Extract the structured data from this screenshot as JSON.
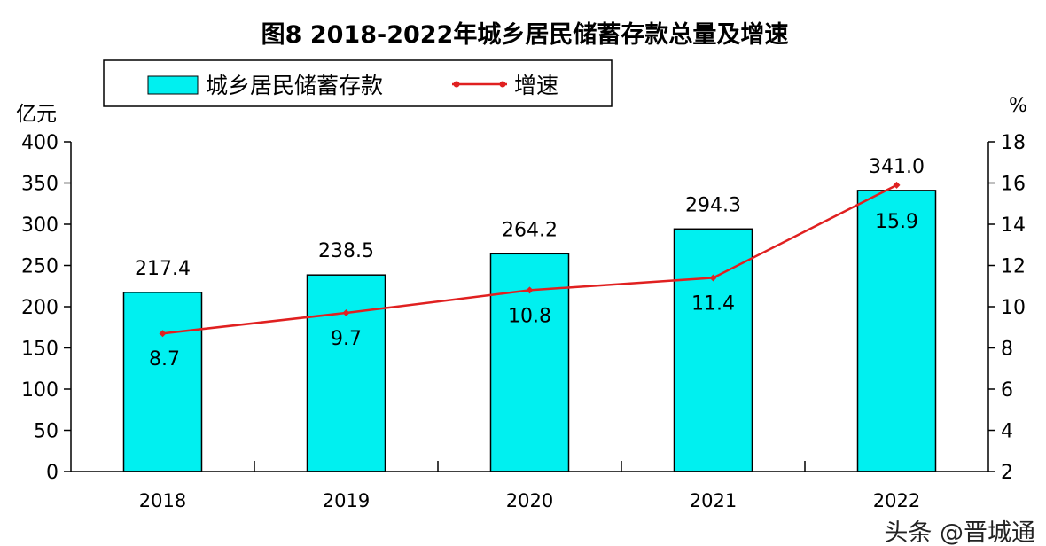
{
  "chart_data": {
    "type": "bar+line",
    "title": "图8 2018-2022年城乡居民储蓄存款总量及增速",
    "categories": [
      "2018",
      "2019",
      "2020",
      "2021",
      "2022"
    ],
    "series": [
      {
        "name": "城乡居民储蓄存款",
        "type": "bar",
        "axis": "left",
        "color": "#00F0F0",
        "values": [
          217.4,
          238.5,
          264.2,
          294.3,
          341.0
        ],
        "labels": [
          "217.4",
          "238.5",
          "264.2",
          "294.3",
          "341.0"
        ]
      },
      {
        "name": "增速",
        "type": "line",
        "axis": "right",
        "color": "#E02020",
        "values": [
          8.7,
          9.7,
          10.8,
          11.4,
          15.9
        ],
        "labels": [
          "8.7",
          "9.7",
          "10.8",
          "11.4",
          "15.9"
        ]
      }
    ],
    "left_axis": {
      "unit": "亿元",
      "range": [
        0,
        400
      ],
      "ticks": [
        "0",
        "50",
        "100",
        "150",
        "200",
        "250",
        "300",
        "350",
        "400"
      ]
    },
    "right_axis": {
      "unit": "%",
      "range": [
        2,
        18
      ],
      "ticks": [
        "2",
        "4",
        "6",
        "8",
        "10",
        "12",
        "14",
        "16",
        "18"
      ]
    },
    "grid": false,
    "legend": "top"
  },
  "watermark": "头条 @晋城通"
}
